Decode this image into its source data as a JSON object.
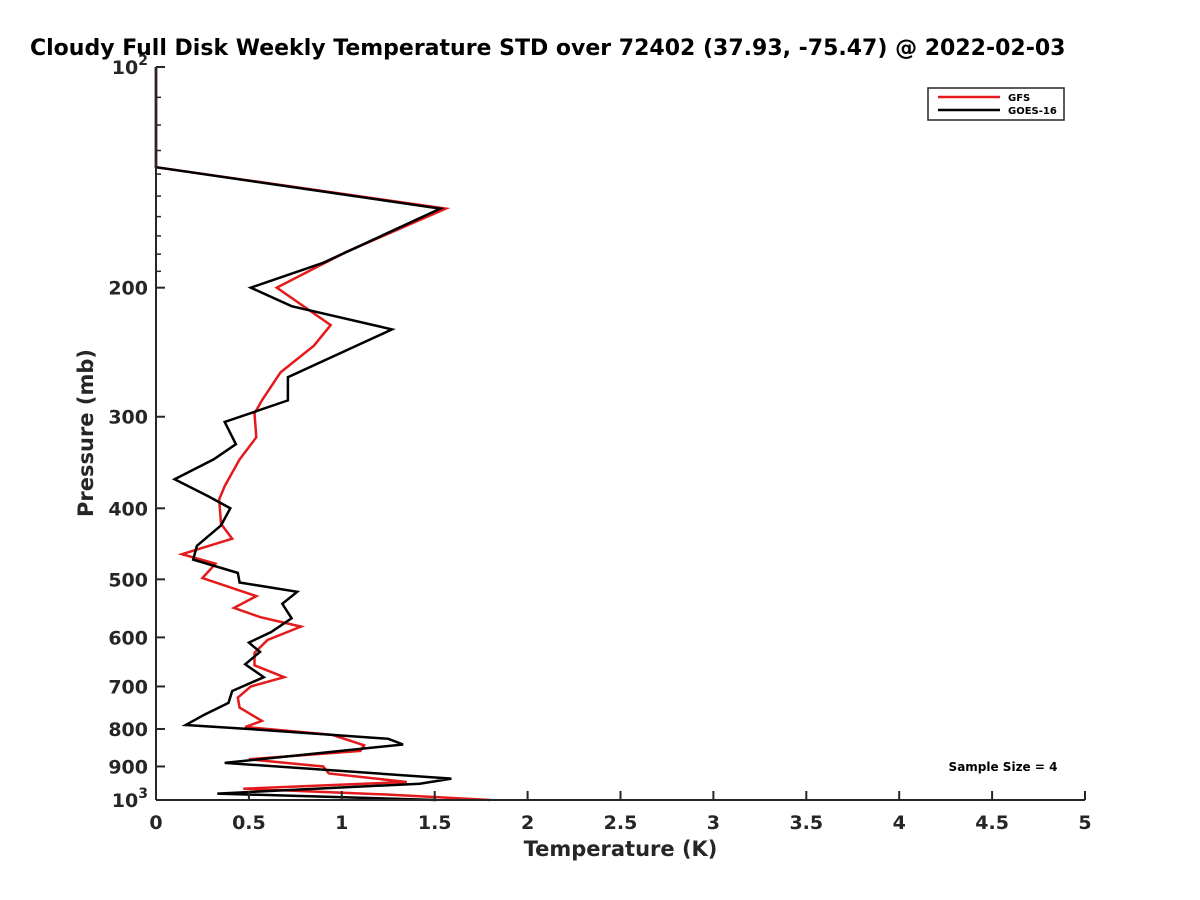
{
  "chart_data": {
    "type": "line",
    "title": "Cloudy Full Disk Weekly Temperature STD over 72402 (37.93, -75.47) @ 2022-02-03",
    "xlabel": "Temperature (K)",
    "ylabel": "Pressure (mb)",
    "xlim": [
      0,
      5
    ],
    "ylim": [
      100,
      1000
    ],
    "y_scale": "log",
    "y_reversed": true,
    "grid": false,
    "legend_position": "top-right",
    "x_ticks": [
      {
        "value": 0,
        "label": "0"
      },
      {
        "value": 0.5,
        "label": "0.5"
      },
      {
        "value": 1,
        "label": "1"
      },
      {
        "value": 1.5,
        "label": "1.5"
      },
      {
        "value": 2,
        "label": "2"
      },
      {
        "value": 2.5,
        "label": "2.5"
      },
      {
        "value": 3,
        "label": "3"
      },
      {
        "value": 3.5,
        "label": "3.5"
      },
      {
        "value": 4,
        "label": "4"
      },
      {
        "value": 4.5,
        "label": "4.5"
      },
      {
        "value": 5,
        "label": "5"
      }
    ],
    "y_ticks": [
      {
        "value": 100,
        "base": "10",
        "exp": "2"
      },
      {
        "value": 200,
        "label": "200"
      },
      {
        "value": 300,
        "label": "300"
      },
      {
        "value": 400,
        "label": "400"
      },
      {
        "value": 500,
        "label": "500"
      },
      {
        "value": 600,
        "label": "600"
      },
      {
        "value": 700,
        "label": "700"
      },
      {
        "value": 800,
        "label": "800"
      },
      {
        "value": 900,
        "label": "900"
      },
      {
        "value": 1000,
        "base": "10",
        "exp": "3"
      }
    ],
    "annotation": "Sample Size = 4",
    "series": [
      {
        "name": "GFS",
        "color": "#e41a1c",
        "points": [
          [
            0,
            100
          ],
          [
            0,
            137
          ],
          [
            1.56,
            156
          ],
          [
            1.02,
            179
          ],
          [
            0.65,
            200
          ],
          [
            0.94,
            225
          ],
          [
            0.85,
            240
          ],
          [
            0.67,
            261
          ],
          [
            0.57,
            285
          ],
          [
            0.53,
            297
          ],
          [
            0.54,
            320
          ],
          [
            0.45,
            343
          ],
          [
            0.37,
            373
          ],
          [
            0.34,
            389
          ],
          [
            0.35,
            420
          ],
          [
            0.41,
            440
          ],
          [
            0.14,
            462
          ],
          [
            0.32,
            476
          ],
          [
            0.25,
            498
          ],
          [
            0.54,
            527
          ],
          [
            0.42,
            547
          ],
          [
            0.56,
            563
          ],
          [
            0.78,
            580
          ],
          [
            0.6,
            605
          ],
          [
            0.53,
            630
          ],
          [
            0.53,
            655
          ],
          [
            0.69,
            680
          ],
          [
            0.51,
            700
          ],
          [
            0.44,
            725
          ],
          [
            0.45,
            748
          ],
          [
            0.57,
            780
          ],
          [
            0.48,
            795
          ],
          [
            0.95,
            815
          ],
          [
            1.12,
            842
          ],
          [
            1.1,
            857
          ],
          [
            0.5,
            880
          ],
          [
            0.9,
            900
          ],
          [
            0.93,
            920
          ],
          [
            1.35,
            945
          ],
          [
            0.47,
            965
          ],
          [
            1.24,
            983
          ],
          [
            1.8,
            1000
          ]
        ]
      },
      {
        "name": "GOES-16",
        "color": "#000000",
        "points": [
          [
            0,
            100
          ],
          [
            0,
            137
          ],
          [
            1.53,
            156
          ],
          [
            0.9,
            185
          ],
          [
            0.51,
            200
          ],
          [
            0.73,
            212
          ],
          [
            1.27,
            228
          ],
          [
            0.71,
            265
          ],
          [
            0.71,
            285
          ],
          [
            0.37,
            305
          ],
          [
            0.43,
            327
          ],
          [
            0.31,
            343
          ],
          [
            0.1,
            365
          ],
          [
            0.28,
            385
          ],
          [
            0.4,
            400
          ],
          [
            0.35,
            422
          ],
          [
            0.22,
            450
          ],
          [
            0.2,
            470
          ],
          [
            0.44,
            490
          ],
          [
            0.45,
            505
          ],
          [
            0.76,
            520
          ],
          [
            0.68,
            540
          ],
          [
            0.73,
            565
          ],
          [
            0.62,
            590
          ],
          [
            0.5,
            610
          ],
          [
            0.56,
            628
          ],
          [
            0.48,
            653
          ],
          [
            0.58,
            680
          ],
          [
            0.41,
            710
          ],
          [
            0.39,
            737
          ],
          [
            0.26,
            765
          ],
          [
            0.16,
            790
          ],
          [
            0.5,
            800
          ],
          [
            1.25,
            825
          ],
          [
            1.33,
            840
          ],
          [
            0.37,
            890
          ],
          [
            1.59,
            935
          ],
          [
            1.42,
            950
          ],
          [
            0.33,
            980
          ],
          [
            1.51,
            1000
          ]
        ]
      }
    ]
  }
}
